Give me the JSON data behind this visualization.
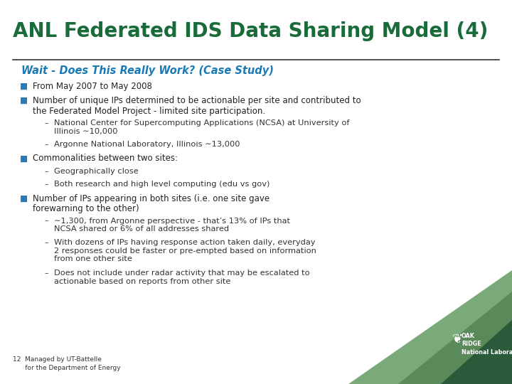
{
  "title": "ANL Federated IDS Data Sharing Model (4)",
  "title_color": "#1a6b3a",
  "title_fontsize": 20,
  "subtitle": "Wait - Does This Really Work? (Case Study)",
  "subtitle_color": "#1a7ab5",
  "subtitle_fontsize": 10.5,
  "bg_color": "#ffffff",
  "line_color": "#333333",
  "bullet_color": "#2a7ab5",
  "text_color": "#222222",
  "sub_text_color": "#333333",
  "bullet_char": "■",
  "dash_char": "–",
  "footer_text": "12  Managed by UT-Battelle\n      for the Department of Energy",
  "footer_color": "#333333",
  "footer_fontsize": 6.5,
  "corner_color1": "#6a9a6a",
  "corner_color2": "#2a6040",
  "ornl_text": "OAK\nRIDGE\nNational Laboratory",
  "bullet_items": [
    {
      "level": 1,
      "text": "From May 2007 to May 2008"
    },
    {
      "level": 1,
      "text": "Number of unique IPs determined to be actionable per site and contributed to\nthe Federated Model Project - limited site participation."
    },
    {
      "level": 2,
      "text": "National Center for Supercomputing Applications (NCSA) at University of\nIllinois ∼10,000"
    },
    {
      "level": 2,
      "text": "Argonne National Laboratory, Illinois ∼13,000"
    },
    {
      "level": 1,
      "text": "Commonalities between two sites:"
    },
    {
      "level": 2,
      "text": "Geographically close"
    },
    {
      "level": 2,
      "text": "Both research and high level computing (edu vs gov)"
    },
    {
      "level": 1,
      "text": "Number of IPs appearing in both sites (i.e. one site gave\nforewarning to the other)"
    },
    {
      "level": 2,
      "text": "∼1,300, from Argonne perspective - that’s 13% of IPs that\nNCSA shared or 6% of all addresses shared"
    },
    {
      "level": 2,
      "text": "With dozens of IPs having response action taken daily, everyday\n2 responses could be faster or pre-empted based on information\nfrom one other site"
    },
    {
      "level": 2,
      "text": "Does not include under radar activity that may be escalated to\nactionable based on reports from other site"
    }
  ]
}
